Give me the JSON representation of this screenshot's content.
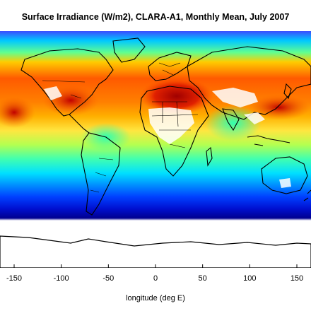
{
  "title": "Surface Irradiance (W/m2), CLARA-A1, Monthly Mean, July 2007",
  "x_axis": {
    "label": "longitude (deg E)",
    "ticks": [
      "-150",
      "-100",
      "-50",
      "0",
      "50",
      "100",
      "150"
    ]
  },
  "chart_data": {
    "type": "heatmap",
    "title": "Surface Irradiance (W/m2), CLARA-A1, Monthly Mean, July 2007",
    "xlabel": "longitude (deg E)",
    "ylabel": "",
    "x_ticks": [
      -150,
      -100,
      -50,
      0,
      50,
      100,
      150
    ],
    "xlim": [
      -165,
      165
    ],
    "colors": {
      "max": "#b30000",
      "high": "#ff3300",
      "mid_high": "#ffcc00",
      "mid": "#66ff66",
      "mid_low": "#00ffff",
      "low": "#0066ff",
      "min": "#00008b",
      "no_data": "#ffffff",
      "coastline": "#000000"
    }
  }
}
